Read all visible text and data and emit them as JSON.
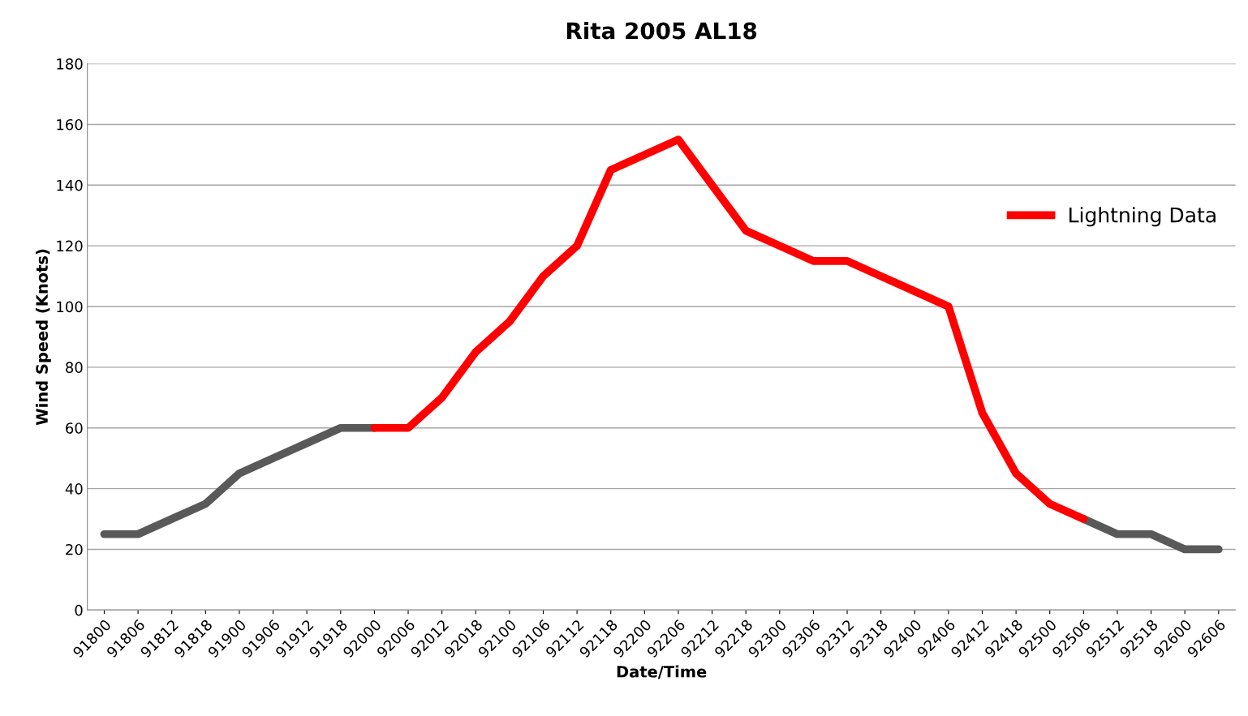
{
  "chart_data": {
    "type": "line",
    "title": "Rita 2005 AL18",
    "xlabel": "Date/Time",
    "ylabel": "Wind Speed (Knots)",
    "categories": [
      "91800",
      "91806",
      "91812",
      "91818",
      "91900",
      "91906",
      "91912",
      "91918",
      "92000",
      "92006",
      "92012",
      "92018",
      "92100",
      "92106",
      "92112",
      "92118",
      "92200",
      "92206",
      "92212",
      "92218",
      "92300",
      "92306",
      "92312",
      "92318",
      "92400",
      "92406",
      "92412",
      "92418",
      "92500",
      "92506",
      "92512",
      "92518",
      "92600",
      "92606"
    ],
    "series": [
      {
        "color": "#595959",
        "values": [
          25,
          25,
          30,
          35,
          45,
          50,
          55,
          60,
          60,
          null,
          null,
          null,
          null,
          null,
          null,
          null,
          null,
          null,
          null,
          null,
          null,
          null,
          null,
          null,
          null,
          null,
          null,
          null,
          null,
          30,
          25,
          25,
          20,
          20
        ]
      },
      {
        "name": "Lightning Data",
        "color": "#ff0000",
        "values": [
          null,
          null,
          null,
          null,
          null,
          null,
          null,
          null,
          60,
          60,
          70,
          85,
          95,
          110,
          120,
          145,
          150,
          155,
          140,
          125,
          120,
          115,
          115,
          110,
          105,
          100,
          65,
          45,
          35,
          30,
          null,
          null,
          null,
          null
        ]
      }
    ],
    "ylim": [
      0,
      180
    ],
    "yticks": [
      0,
      20,
      40,
      60,
      80,
      100,
      120,
      140,
      160,
      180
    ],
    "grid": "y",
    "legend": "right",
    "marker": "none",
    "line_style": "solid"
  }
}
